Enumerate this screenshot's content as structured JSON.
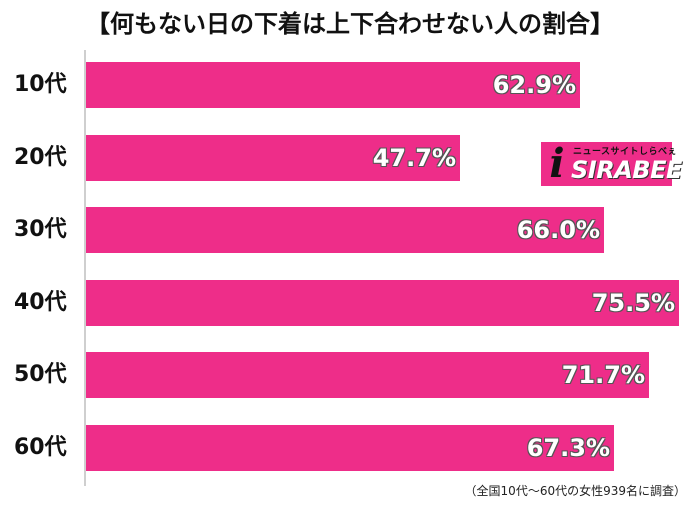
{
  "chart_data": {
    "type": "bar",
    "orientation": "horizontal",
    "title": "【何もない日の下着は上下合わせない人の割合】",
    "categories": [
      "10代",
      "20代",
      "30代",
      "40代",
      "50代",
      "60代"
    ],
    "values": [
      62.9,
      47.7,
      66.0,
      75.5,
      71.7,
      67.3
    ],
    "value_labels": [
      "62.9%",
      "47.7%",
      "66.0%",
      "75.5%",
      "71.7%",
      "67.3%"
    ],
    "unit": "%",
    "xlim": [
      0,
      80
    ],
    "bar_color": "#ee2d89",
    "footnote": "（全国10代〜60代の女性939名に調査）"
  },
  "logo": {
    "tagline": "ニュースサイトしらべぇ",
    "text": "SIRABEE",
    "mark": "i"
  }
}
